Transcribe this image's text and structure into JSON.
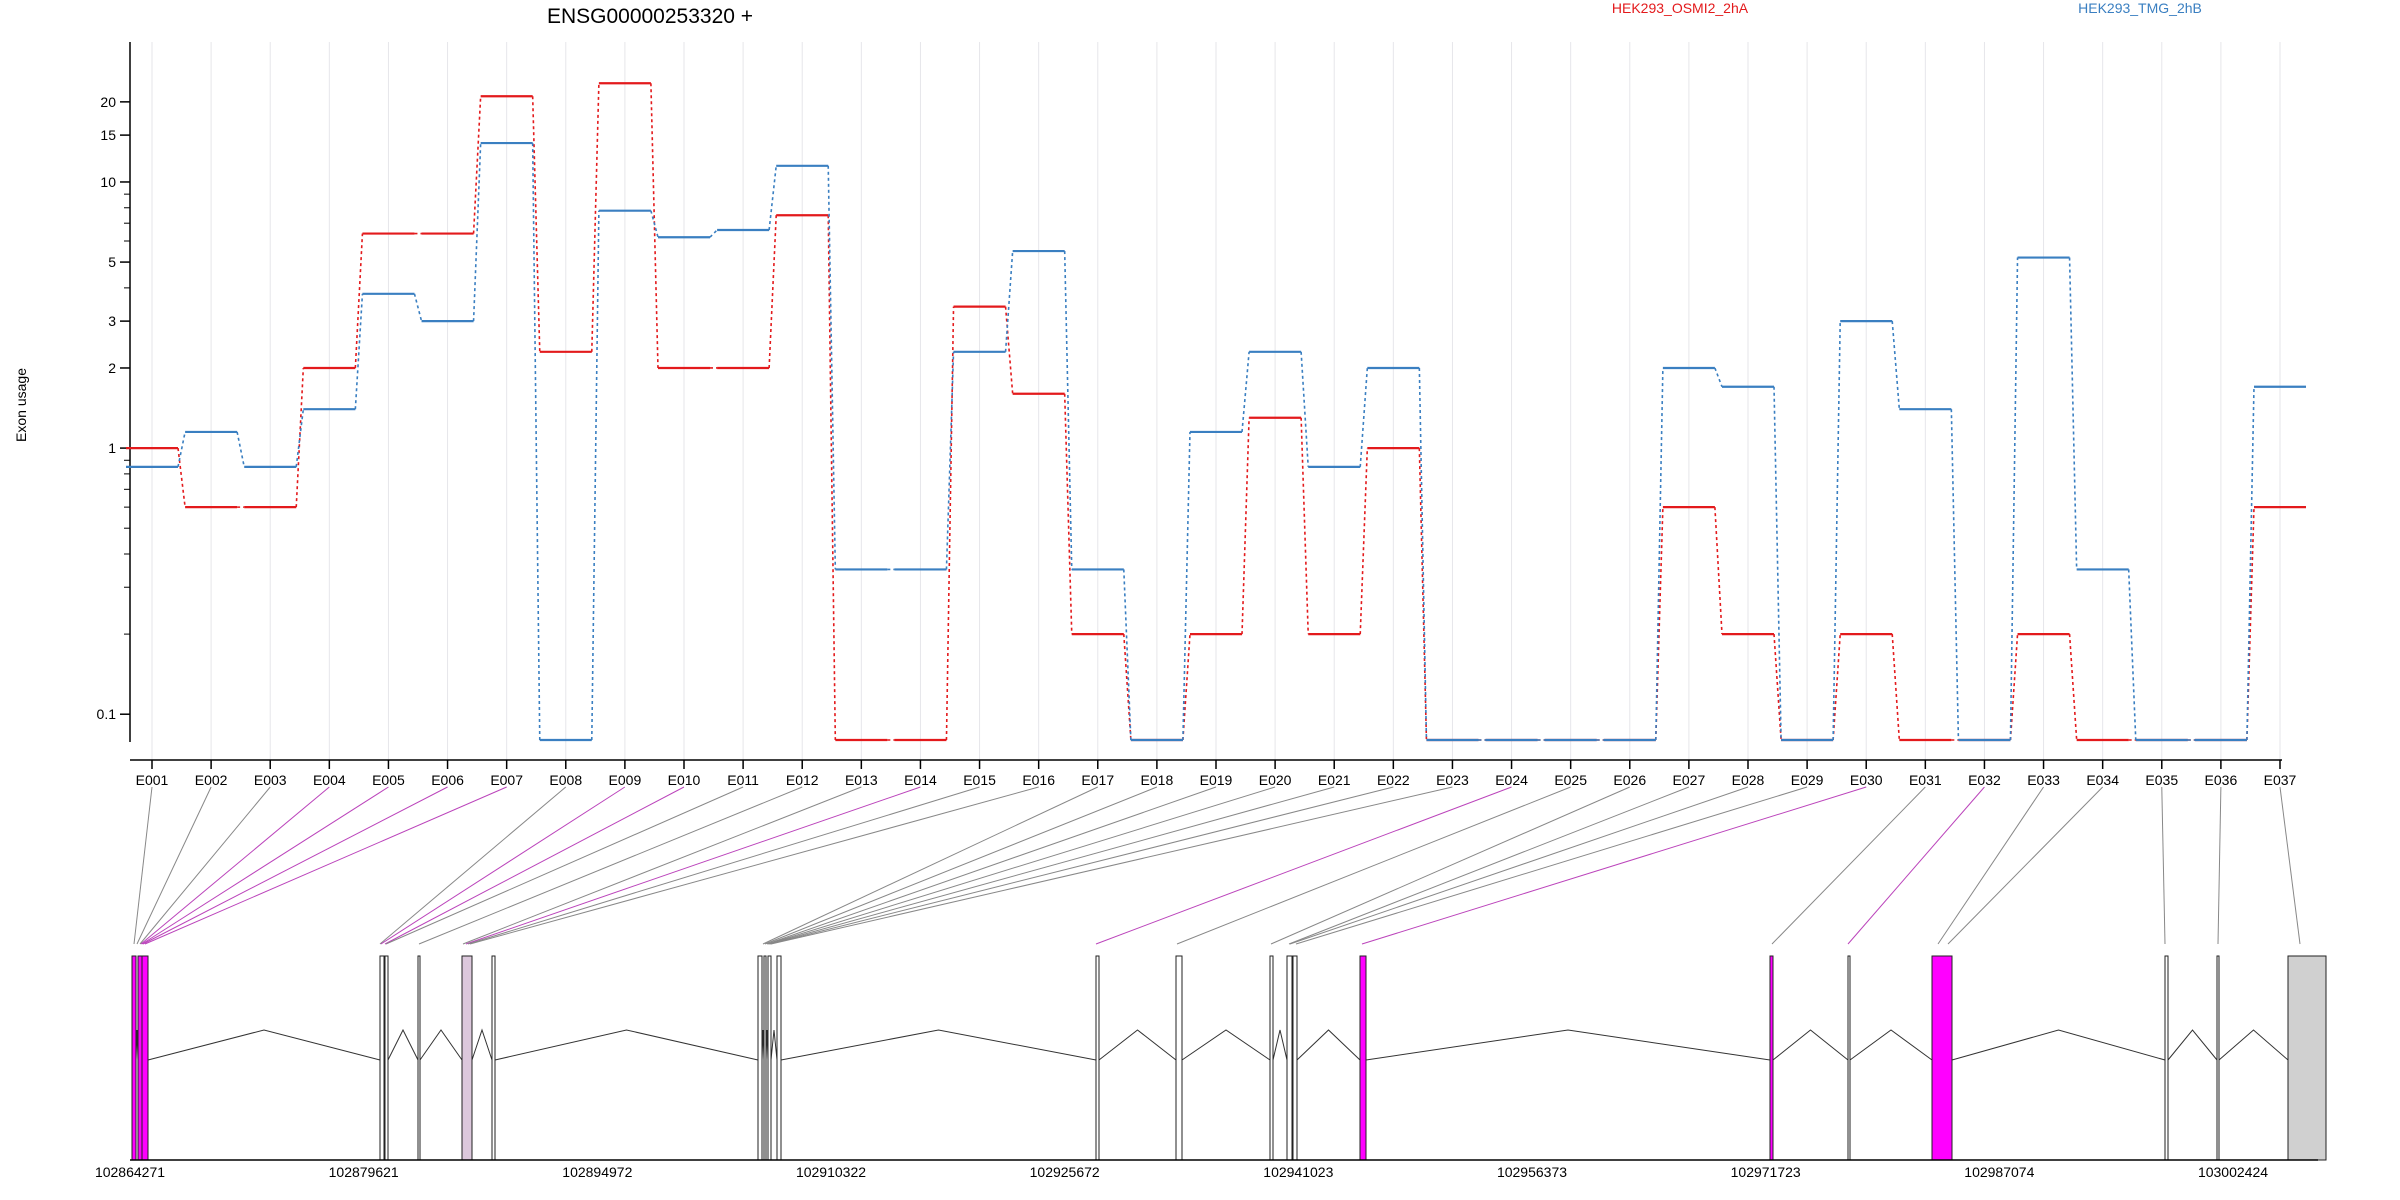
{
  "chart_data": {
    "type": "line",
    "title": "ENSG00000253320 +",
    "ylabel": "Exon usage",
    "xlabel": "",
    "y_scale": "log",
    "ylim": [
      0.08,
      30
    ],
    "yticks": [
      {
        "value": 0.1,
        "label": "0.1"
      },
      {
        "value": 1,
        "label": "1"
      },
      {
        "value": 2,
        "label": "2"
      },
      {
        "value": 3,
        "label": "3"
      },
      {
        "value": 5,
        "label": "5"
      },
      {
        "value": 10,
        "label": "10"
      },
      {
        "value": 15,
        "label": "15"
      },
      {
        "value": 20,
        "label": "20"
      }
    ],
    "grid": "vertical",
    "legend_position": "top-right",
    "categories": [
      "E001",
      "E002",
      "E003",
      "E004",
      "E005",
      "E006",
      "E007",
      "E008",
      "E009",
      "E010",
      "E011",
      "E012",
      "E013",
      "E014",
      "E015",
      "E016",
      "E017",
      "E018",
      "E019",
      "E020",
      "E021",
      "E022",
      "E023",
      "E024",
      "E025",
      "E026",
      "E027",
      "E028",
      "E029",
      "E030",
      "E031",
      "E032",
      "E033",
      "E034",
      "E035",
      "E036",
      "E037"
    ],
    "series": [
      {
        "name": "HEK293_OSMI2_2hA",
        "color": "#e31a1c",
        "values": [
          1.0,
          0.6,
          0.6,
          2.0,
          6.4,
          6.4,
          21.0,
          2.3,
          23.5,
          2.0,
          2.0,
          7.5,
          0.08,
          0.08,
          3.4,
          1.6,
          0.2,
          0.08,
          0.2,
          1.3,
          0.2,
          1.0,
          0.08,
          0.08,
          0.08,
          0.08,
          0.6,
          0.2,
          0.08,
          0.2,
          0.08,
          0.08,
          0.2,
          0.08,
          0.08,
          0.08,
          0.6
        ]
      },
      {
        "name": "HEK293_TMG_2hB",
        "color": "#3a7fc1",
        "values": [
          0.85,
          1.15,
          0.85,
          1.4,
          3.8,
          3.0,
          14.0,
          0.08,
          7.8,
          6.2,
          6.6,
          11.5,
          0.35,
          0.35,
          2.3,
          5.5,
          0.35,
          0.08,
          1.15,
          2.3,
          0.85,
          2.0,
          0.08,
          0.08,
          0.08,
          0.08,
          2.0,
          1.7,
          0.08,
          3.0,
          1.4,
          0.08,
          5.2,
          0.35,
          0.08,
          0.08,
          1.7
        ]
      }
    ],
    "genomic_axis": {
      "labels": [
        "102864271",
        "102879621",
        "102894972",
        "102910322",
        "102925672",
        "102941023",
        "102956373",
        "102971723",
        "102987074",
        "103002424"
      ]
    },
    "exon_highlight": [
      false,
      false,
      false,
      true,
      true,
      true,
      true,
      false,
      true,
      true,
      false,
      false,
      false,
      true,
      false,
      false,
      false,
      false,
      false,
      false,
      false,
      false,
      false,
      true,
      false,
      false,
      false,
      false,
      false,
      true,
      false,
      true,
      false,
      false,
      false,
      false,
      false
    ],
    "colors": {
      "highlight": "#ff00ff",
      "exon_grey": "#d0d0d0",
      "connector": "#888888",
      "connector_highlight": "#bb44bb"
    }
  }
}
